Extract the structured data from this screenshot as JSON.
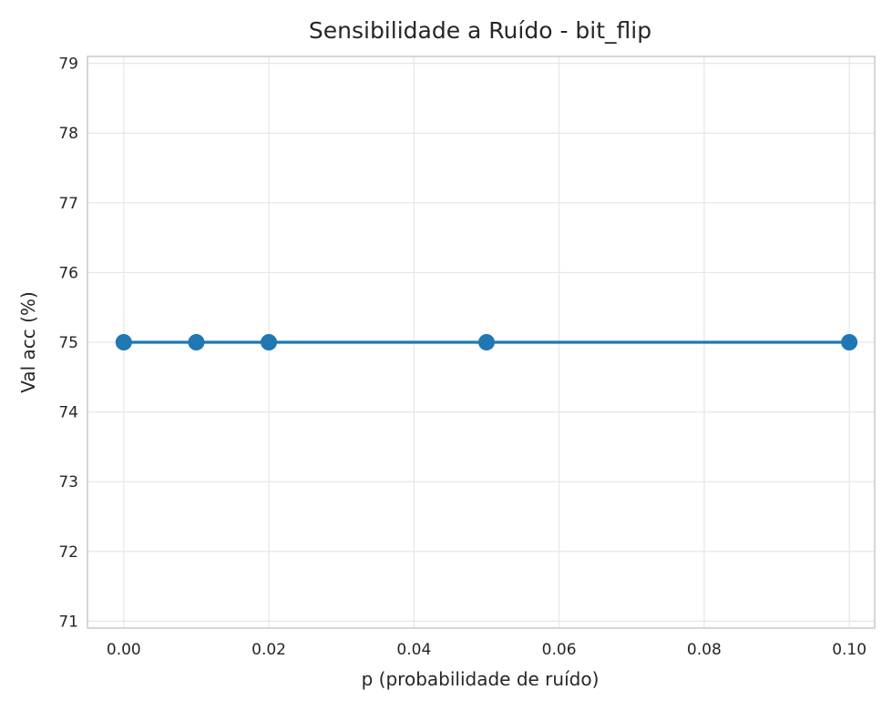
{
  "chart_data": {
    "type": "line",
    "title": "Sensibilidade a Ruído - bit_flip",
    "xlabel": "p (probabilidade de ruído)",
    "ylabel": "Val acc (%)",
    "xlim": [
      -0.005,
      0.1035
    ],
    "ylim": [
      70.9,
      79.1
    ],
    "xticks": [
      0.0,
      0.02,
      0.04,
      0.06,
      0.08,
      0.1
    ],
    "xtick_labels": [
      "0.00",
      "0.02",
      "0.04",
      "0.06",
      "0.08",
      "0.10"
    ],
    "yticks": [
      71,
      72,
      73,
      74,
      75,
      76,
      77,
      78,
      79
    ],
    "ytick_labels": [
      "71",
      "72",
      "73",
      "74",
      "75",
      "76",
      "77",
      "78",
      "79"
    ],
    "grid": true,
    "series": [
      {
        "color": "#1f77b4",
        "marker": "circle",
        "x": [
          0.0,
          0.01,
          0.02,
          0.05,
          0.1
        ],
        "y": [
          75.0,
          75.0,
          75.0,
          75.0,
          75.0
        ]
      }
    ]
  }
}
